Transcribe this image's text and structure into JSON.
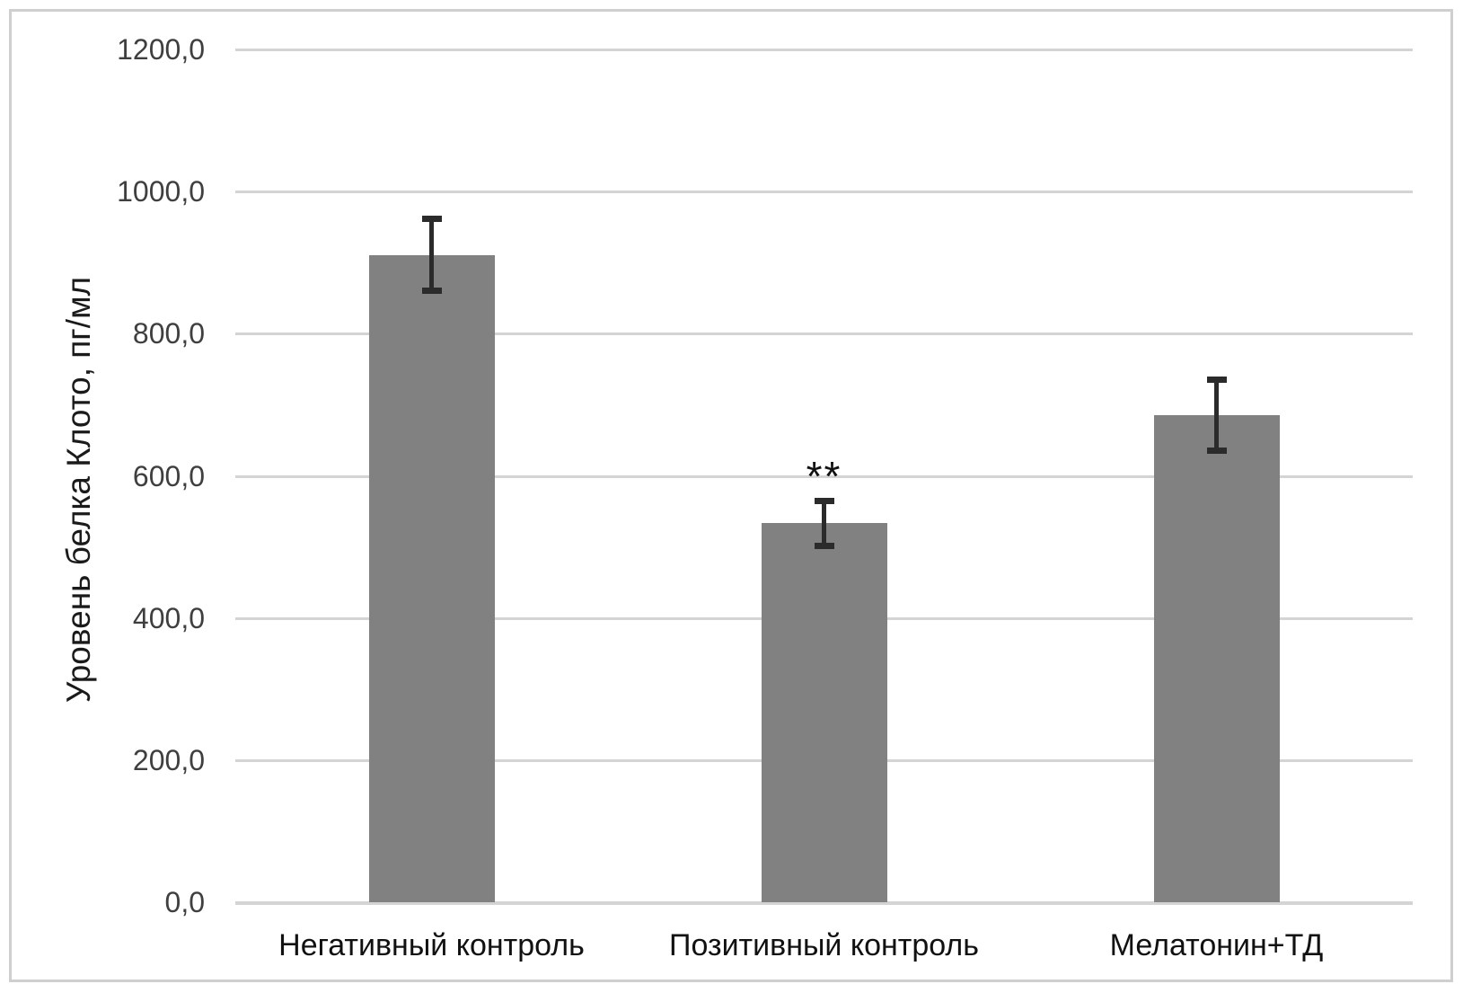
{
  "chart_data": {
    "type": "bar",
    "title": "",
    "categories": [
      "Негативный контроль",
      "Позитивный контроль",
      "Мелатонин+ТД"
    ],
    "values": [
      911,
      533,
      685
    ],
    "error_bars": [
      51,
      32,
      50
    ],
    "ylabel": "Уровень белка Клото, пг/мл",
    "xlabel": "",
    "ylim": [
      0,
      1200
    ],
    "ytick_step": 200,
    "ytick_labels": [
      "0,0",
      "200,0",
      "400,0",
      "600,0",
      "800,0",
      "1000,0",
      "1200,0"
    ],
    "decimal_separator": ",",
    "annotations": [
      {
        "category_index": 1,
        "text": "**",
        "meaning": "significance-marker"
      }
    ],
    "grid": "horizontal-on",
    "legend": "none",
    "colors": {
      "bar_fill": "#818181",
      "error_bar": "#2b2b2b",
      "gridline": "#d4d4d4",
      "axis_tick_text": "#3f3f3f",
      "category_text": "#111111",
      "axis_title_text": "#1a1a1a",
      "frame_border": "#cfcfcf",
      "background": "#ffffff"
    }
  }
}
